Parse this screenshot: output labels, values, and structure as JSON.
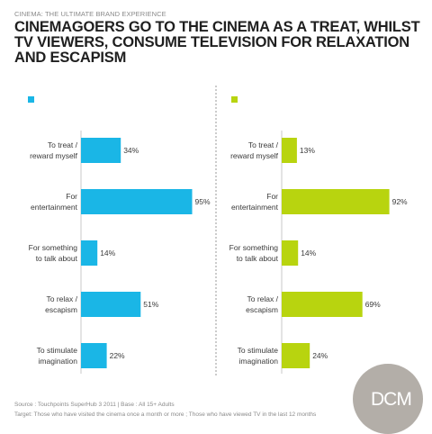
{
  "header": {
    "kicker": "CINEMA: THE ULTIMATE BRAND EXPERIENCE",
    "headline_lines": [
      "CINEMAGOERS GO TO THE CINEMA AS A TREAT, WHILST",
      "TV VIEWERS, CONSUME TELEVISION FOR RELAXATION",
      "AND ESCAPISM"
    ]
  },
  "colors": {
    "cinema": "#1ab6e6",
    "tv": "#b8d40f",
    "divider": "#9a9a9a",
    "logo": "#b3aea8"
  },
  "chart_data": [
    {
      "type": "bar",
      "orientation": "horizontal",
      "legend_marker_color": "#1ab6e6",
      "categories": [
        "To treat / reward myself",
        "For entertainment",
        "For something to talk about",
        "To relax / escapism",
        "To stimulate imagination"
      ],
      "category_lines": [
        [
          "To treat /",
          "reward myself"
        ],
        [
          "For",
          "entertainment"
        ],
        [
          "For something",
          "to talk about"
        ],
        [
          "To relax /",
          "escapism"
        ],
        [
          "To stimulate",
          "imagination"
        ]
      ],
      "values": [
        34,
        95,
        14,
        51,
        22
      ],
      "value_labels": [
        "34%",
        "95%",
        "14%",
        "51%",
        "22%"
      ],
      "xlim": [
        0,
        100
      ]
    },
    {
      "type": "bar",
      "orientation": "horizontal",
      "legend_marker_color": "#b8d40f",
      "categories": [
        "To treat / reward myself",
        "For entertainment",
        "For something to talk about",
        "To relax / escapism",
        "To stimulate imagination"
      ],
      "category_lines": [
        [
          "To treat /",
          "reward myself"
        ],
        [
          "For",
          "entertainment"
        ],
        [
          "For something",
          "to talk about"
        ],
        [
          "To relax /",
          "escapism"
        ],
        [
          "To stimulate",
          "imagination"
        ]
      ],
      "values": [
        13,
        92,
        14,
        69,
        24
      ],
      "value_labels": [
        "13%",
        "92%",
        "14%",
        "69%",
        "24%"
      ],
      "xlim": [
        0,
        100
      ]
    }
  ],
  "footer": {
    "source": "Source : Touchpoints SuperHub 3 2011  |  Base : All 15+ Adults",
    "target": "Target: Those who have visited the cinema once a month or more ; Those who have viewed TV in the last 12 months"
  },
  "logo": {
    "text": "DCM"
  }
}
